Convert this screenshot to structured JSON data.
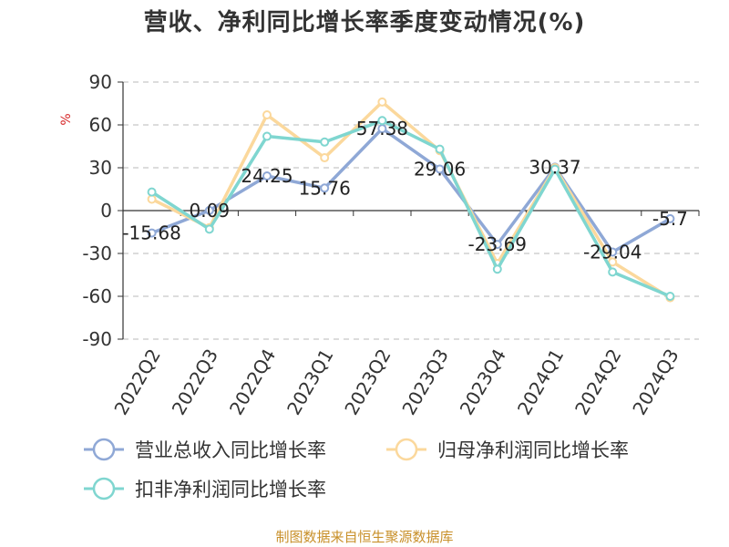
{
  "chart_data": {
    "type": "line",
    "title": "营收、净利同比增长率季度变动情况(%)",
    "ylabel": "%",
    "source": "制图数据来自恒生聚源数据库",
    "categories": [
      "2022Q2",
      "2022Q3",
      "2022Q4",
      "2023Q1",
      "2023Q2",
      "2023Q3",
      "2023Q4",
      "2024Q1",
      "2024Q2",
      "2024Q3"
    ],
    "ylim": [
      -90,
      90
    ],
    "yticks": [
      90,
      60,
      30,
      0,
      -30,
      -60,
      -90
    ],
    "ytick_labels": [
      "90",
      "60",
      "30",
      "0",
      "-30",
      "-60",
      "-90"
    ],
    "grid": true,
    "legend_position": "bottom",
    "series": [
      {
        "name": "营业总收入同比增长率",
        "color": "#8fa8d6",
        "values": [
          -15.68,
          0.09,
          24.25,
          15.76,
          57.38,
          29.06,
          -23.69,
          30.37,
          -29.04,
          -5.7
        ],
        "labels": [
          "-15.68",
          "0.09",
          "24.25",
          "15.76",
          "57.38",
          "29.06",
          "-23.69",
          "30.37",
          "-29.04",
          "-5.7"
        ]
      },
      {
        "name": "归母净利润同比增长率",
        "color": "#fbd89c",
        "values": [
          8,
          -12,
          67,
          37,
          76,
          42,
          -37,
          30,
          -36,
          -61
        ]
      },
      {
        "name": "扣非净利润同比增长率",
        "color": "#7fd6d0",
        "values": [
          13,
          -13,
          52,
          48,
          63,
          43,
          -41,
          29,
          -43,
          -60
        ]
      }
    ]
  }
}
